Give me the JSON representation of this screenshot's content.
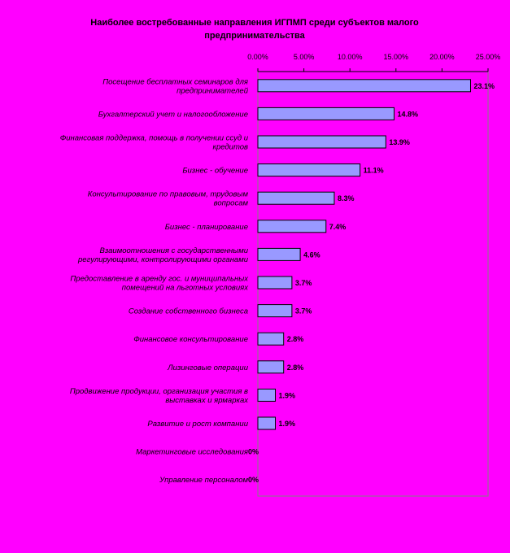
{
  "chart_data": {
    "type": "bar",
    "orientation": "horizontal",
    "title": "Наиболее востребованные направления ИГПМП среди субъектов малого предпринимательства",
    "title_lines": [
      "Наиболее востребованные направления ИГПМП среди субъектов малого",
      "предпринимательства"
    ],
    "xlim": [
      0,
      25
    ],
    "ticks": [
      0,
      5,
      10,
      15,
      20,
      25
    ],
    "tick_labels": [
      "0.00%",
      "5.00%",
      "10.00%",
      "15.00%",
      "20.00%",
      "25.00%"
    ],
    "grid": false,
    "categories": [
      "Посещение бесплатных семинаров для предпринимателей",
      "Бухгалтерский учет и налогообложение",
      "Финансовая поддержка, помощь в получении ссуд и кредитов",
      "Бизнес - обучение",
      "Консультирование по правовым, трудовым вопросам",
      "Бизнес - планирование",
      "Взаимоотношения с государственными регулирующими, контролирующими органами",
      "Предоставление в аренду гос. и муниципальных помещений на льготных условиях",
      "Создание собственного бизнеса",
      "Финансовое консультирование",
      "Лизинговые операции",
      "Продвижение продукции, организация участия в выставках и ярмарках",
      "Развитие и рост компании",
      "Маркетинговые исследования",
      "Управление персоналом"
    ],
    "category_lines": [
      [
        "Посещение бесплатных семинаров для",
        "предпринимателей"
      ],
      [
        "Бухгалтерский учет и налогообложение"
      ],
      [
        "Финансовая поддержка, помощь в получении ссуд и",
        "кредитов"
      ],
      [
        "Бизнес - обучение"
      ],
      [
        "Консультирование по правовым, трудовым",
        "вопросам"
      ],
      [
        "Бизнес - планирование"
      ],
      [
        "Взаимоотношения с государственными",
        "регулирующими, контролирующими органами"
      ],
      [
        "Предоставление в аренду гос. и муниципальных",
        "помещений на льготных условиях"
      ],
      [
        "Создание собственного бизнеса"
      ],
      [
        "Финансовое консультирование"
      ],
      [
        "Лизинговые операции"
      ],
      [
        "Продвижение продукции, организация участия в",
        "выставках и ярмарках"
      ],
      [
        "Развитие и рост компании"
      ],
      [
        "Маркетинговые исследования"
      ],
      [
        "Управление персоналом"
      ]
    ],
    "values": [
      23.1,
      14.8,
      13.9,
      11.1,
      8.3,
      7.4,
      4.6,
      3.7,
      3.7,
      2.8,
      2.8,
      1.9,
      1.9,
      0,
      0
    ],
    "value_labels": [
      "23.1%",
      "14.8%",
      "13.9%",
      "11.1%",
      "8.3%",
      "7.4%",
      "4.6%",
      "3.7%",
      "3.7%",
      "2.8%",
      "2.8%",
      "1.9%",
      "1.9%",
      "0%",
      "0%"
    ],
    "colors": {
      "background": "#ff00ff",
      "bar_fill": "#9999ff",
      "bar_stroke": "#000000",
      "text": "#000000"
    }
  }
}
